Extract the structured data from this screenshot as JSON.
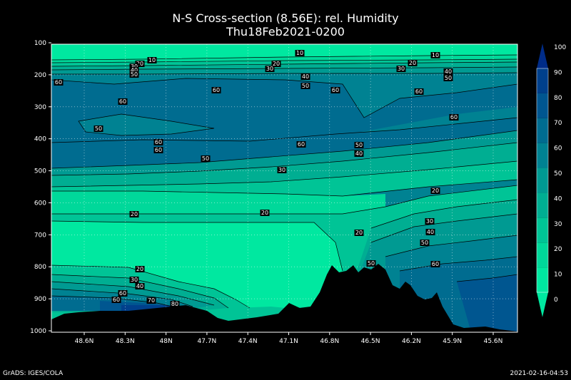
{
  "chart_data": {
    "type": "heatmap",
    "title": "N-S Cross-section (8.56E): rel. Humidity",
    "subtitle": "Thu18Feb2021-0200",
    "x_ticks": [
      "48.6N",
      "48.3N",
      "48N",
      "47.7N",
      "47.4N",
      "47.1N",
      "46.8N",
      "46.5N",
      "46.2N",
      "45.9N",
      "45.6N"
    ],
    "y_ticks": [
      "100",
      "200",
      "300",
      "400",
      "500",
      "600",
      "700",
      "800",
      "900",
      "1000"
    ],
    "y_range": [
      100,
      1000
    ],
    "colorbar": {
      "ticks": [
        "0",
        "10",
        "20",
        "30",
        "40",
        "50",
        "60",
        "70",
        "80",
        "90",
        "100"
      ],
      "levels": [
        0,
        10,
        20,
        30,
        40,
        50,
        60,
        70,
        80,
        90,
        100
      ],
      "colors": [
        "#00e8a0",
        "#00d89a",
        "#00c496",
        "#00ae92",
        "#009a92",
        "#008292",
        "#006c90",
        "#005690",
        "#00408c",
        "#002c88",
        "#101878"
      ]
    },
    "contour_labels": [
      {
        "text": "10"
      },
      {
        "text": "10"
      },
      {
        "text": "10"
      },
      {
        "text": "20"
      },
      {
        "text": "20"
      },
      {
        "text": "20"
      },
      {
        "text": "20"
      },
      {
        "text": "20"
      },
      {
        "text": "20"
      },
      {
        "text": "20"
      },
      {
        "text": "20"
      },
      {
        "text": "30"
      },
      {
        "text": "30"
      },
      {
        "text": "30"
      },
      {
        "text": "30"
      },
      {
        "text": "30"
      },
      {
        "text": "30"
      },
      {
        "text": "40"
      },
      {
        "text": "40"
      },
      {
        "text": "40"
      },
      {
        "text": "40"
      },
      {
        "text": "40"
      },
      {
        "text": "40"
      },
      {
        "text": "50"
      },
      {
        "text": "50"
      },
      {
        "text": "50"
      },
      {
        "text": "50"
      },
      {
        "text": "50"
      },
      {
        "text": "50"
      },
      {
        "text": "50"
      },
      {
        "text": "50"
      },
      {
        "text": "60"
      },
      {
        "text": "60"
      },
      {
        "text": "60"
      },
      {
        "text": "60"
      },
      {
        "text": "60"
      },
      {
        "text": "60"
      },
      {
        "text": "60"
      },
      {
        "text": "60"
      },
      {
        "text": "60"
      },
      {
        "text": "60"
      },
      {
        "text": "60"
      },
      {
        "text": "60"
      },
      {
        "text": "70"
      },
      {
        "text": "80"
      }
    ],
    "grid": true
  },
  "footer": {
    "left": "GrADS: IGES/COLA",
    "right": "2021-02-16-04:53"
  }
}
